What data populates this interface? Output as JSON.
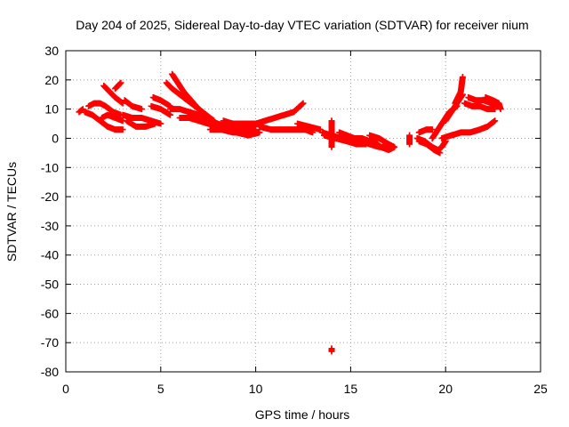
{
  "chart_data": {
    "type": "scatter",
    "title": "Day 204 of 2025, Sidereal Day-to-day VTEC variation (SDTVAR) for receiver nium",
    "xlabel": "GPS time / hours",
    "ylabel": "SDTVAR / TECUs",
    "xlim": [
      0,
      25
    ],
    "ylim": [
      -80,
      30
    ],
    "xticks": [
      0,
      5,
      10,
      15,
      20,
      25
    ],
    "yticks": [
      -80,
      -70,
      -60,
      -50,
      -40,
      -30,
      -20,
      -10,
      0,
      10,
      20,
      30
    ],
    "grid": true,
    "marker": "+",
    "color": "#ff0000",
    "series": [
      {
        "name": "SDTVAR",
        "segments": [
          [
            [
              0.7,
              9
            ],
            [
              0.9,
              10
            ]
          ],
          [
            [
              1.2,
              11
            ],
            [
              1.5,
              12
            ],
            [
              1.8,
              12
            ],
            [
              2.1,
              11
            ],
            [
              2.5,
              9
            ],
            [
              2.9,
              8
            ]
          ],
          [
            [
              1.0,
              9
            ],
            [
              1.4,
              8
            ],
            [
              1.8,
              6
            ],
            [
              2.2,
              4
            ],
            [
              2.6,
              3
            ],
            [
              3.0,
              3
            ]
          ],
          [
            [
              1.9,
              7
            ],
            [
              2.2,
              8
            ],
            [
              2.6,
              7
            ],
            [
              3.0,
              6
            ]
          ],
          [
            [
              2.0,
              18
            ],
            [
              2.3,
              16
            ],
            [
              2.6,
              14
            ],
            [
              3.0,
              12
            ]
          ],
          [
            [
              2.6,
              17
            ],
            [
              2.9,
              19
            ]
          ],
          [
            [
              3.1,
              13
            ],
            [
              3.5,
              11
            ],
            [
              4.0,
              10
            ]
          ],
          [
            [
              3.0,
              8
            ],
            [
              3.5,
              7
            ],
            [
              4.0,
              7
            ],
            [
              4.5,
              6
            ],
            [
              5.0,
              5
            ]
          ],
          [
            [
              3.2,
              6
            ],
            [
              3.7,
              4
            ],
            [
              4.2,
              4
            ],
            [
              4.7,
              5
            ]
          ],
          [
            [
              4.5,
              11
            ],
            [
              5.0,
              10
            ],
            [
              5.5,
              8
            ]
          ],
          [
            [
              4.6,
              14
            ],
            [
              5.0,
              13
            ],
            [
              5.5,
              11
            ]
          ],
          [
            [
              5.3,
              19
            ],
            [
              5.6,
              17
            ],
            [
              6.0,
              15
            ],
            [
              6.4,
              13
            ],
            [
              6.8,
              11
            ],
            [
              7.2,
              9
            ]
          ],
          [
            [
              5.6,
              22
            ],
            [
              5.9,
              19
            ],
            [
              6.2,
              16
            ],
            [
              6.6,
              13
            ],
            [
              7.0,
              10
            ],
            [
              7.4,
              8
            ],
            [
              7.8,
              6
            ]
          ],
          [
            [
              5.5,
              10
            ],
            [
              6.0,
              10
            ],
            [
              6.5,
              9
            ],
            [
              7.0,
              8
            ],
            [
              7.5,
              7
            ]
          ],
          [
            [
              6.0,
              7
            ],
            [
              6.5,
              7
            ],
            [
              7.0,
              6
            ],
            [
              7.5,
              5
            ],
            [
              8.0,
              4
            ]
          ],
          [
            [
              7.5,
              6
            ],
            [
              8.0,
              5
            ],
            [
              8.5,
              4
            ],
            [
              9.0,
              4
            ],
            [
              9.5,
              4
            ],
            [
              10.0,
              5
            ]
          ],
          [
            [
              7.6,
              3
            ],
            [
              8.2,
              3
            ],
            [
              8.8,
              2
            ],
            [
              9.4,
              2
            ],
            [
              10.0,
              3
            ]
          ],
          [
            [
              9.0,
              2
            ],
            [
              9.6,
              1
            ],
            [
              10.2,
              2
            ]
          ],
          [
            [
              8.3,
              6
            ],
            [
              8.8,
              5
            ],
            [
              9.5,
              5
            ],
            [
              10.0,
              5
            ],
            [
              10.5,
              6
            ],
            [
              11.0,
              7
            ],
            [
              11.5,
              8
            ],
            [
              12.0,
              9
            ],
            [
              12.5,
              12
            ]
          ],
          [
            [
              10.2,
              4
            ],
            [
              10.8,
              3
            ],
            [
              11.5,
              3
            ],
            [
              12.0,
              3
            ],
            [
              12.6,
              3
            ],
            [
              13.0,
              2
            ]
          ],
          [
            [
              12.2,
              5
            ],
            [
              12.8,
              4
            ],
            [
              13.4,
              3
            ]
          ],
          [
            [
              13.5,
              2
            ],
            [
              14.0,
              1
            ],
            [
              14.5,
              0
            ],
            [
              15.0,
              -1
            ],
            [
              15.5,
              -1
            ],
            [
              16.0,
              -2
            ],
            [
              16.5,
              -3
            ],
            [
              17.0,
              -3
            ]
          ],
          [
            [
              13.6,
              1
            ],
            [
              14.2,
              0
            ],
            [
              14.8,
              -1
            ],
            [
              15.3,
              -2
            ],
            [
              15.8,
              -2
            ]
          ],
          [
            [
              14.4,
              2
            ],
            [
              14.8,
              1
            ],
            [
              15.2,
              0
            ],
            [
              15.6,
              0
            ],
            [
              16.0,
              -1
            ],
            [
              16.4,
              -2
            ]
          ],
          [
            [
              16.0,
              1
            ],
            [
              16.5,
              0
            ],
            [
              17.0,
              -2
            ],
            [
              17.3,
              -3
            ]
          ],
          [
            [
              16.2,
              -1
            ],
            [
              16.6,
              -3
            ],
            [
              17.0,
              -4
            ],
            [
              17.3,
              -3
            ]
          ],
          [
            [
              14.0,
              6
            ],
            [
              14.0,
              -3
            ]
          ],
          [
            [
              14.0,
              -72
            ],
            [
              14.0,
              -73
            ]
          ],
          [
            [
              18.1,
              -2
            ],
            [
              18.1,
              0
            ],
            [
              18.1,
              1
            ]
          ],
          [
            [
              18.5,
              0
            ],
            [
              18.9,
              -1
            ],
            [
              19.3,
              -3
            ],
            [
              19.6,
              -4
            ],
            [
              19.8,
              -3
            ],
            [
              20.0,
              -1
            ]
          ],
          [
            [
              18.6,
              -1
            ],
            [
              19.0,
              -2
            ],
            [
              19.4,
              -4
            ],
            [
              19.7,
              -5
            ]
          ],
          [
            [
              18.6,
              2
            ],
            [
              19.0,
              3
            ],
            [
              19.3,
              3
            ]
          ],
          [
            [
              19.3,
              0
            ],
            [
              19.6,
              3
            ],
            [
              19.9,
              6
            ],
            [
              20.2,
              9
            ],
            [
              20.6,
              11
            ]
          ],
          [
            [
              20.0,
              6
            ],
            [
              20.4,
              10
            ],
            [
              20.7,
              13
            ],
            [
              20.9,
              15
            ]
          ],
          [
            [
              20.5,
              12
            ],
            [
              20.8,
              16
            ],
            [
              20.9,
              21
            ]
          ],
          [
            [
              19.8,
              0
            ],
            [
              20.3,
              1
            ],
            [
              20.8,
              2
            ],
            [
              21.3,
              2
            ],
            [
              21.8,
              3
            ],
            [
              22.2,
              4
            ],
            [
              22.6,
              6
            ]
          ],
          [
            [
              21.2,
              14
            ],
            [
              21.6,
              13
            ],
            [
              22.0,
              13
            ],
            [
              22.4,
              12
            ],
            [
              22.8,
              11
            ]
          ],
          [
            [
              21.0,
              12
            ],
            [
              21.4,
              11
            ],
            [
              21.8,
              11
            ],
            [
              22.2,
              10
            ],
            [
              22.6,
              10
            ]
          ],
          [
            [
              22.1,
              14
            ],
            [
              22.5,
              13
            ],
            [
              22.8,
              12
            ],
            [
              22.9,
              10
            ]
          ]
        ]
      }
    ]
  }
}
